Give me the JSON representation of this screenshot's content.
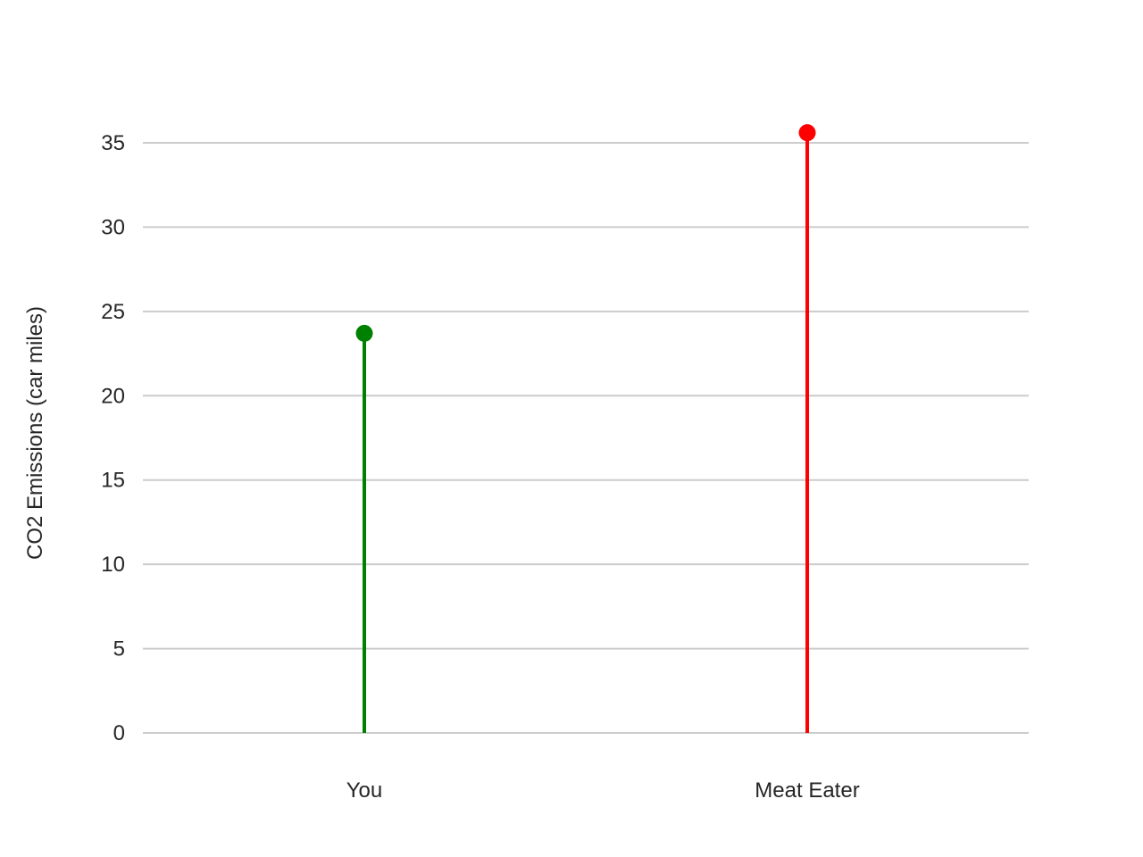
{
  "chart_data": {
    "type": "lollipop",
    "categories": [
      "You",
      "Meat Eater"
    ],
    "values": [
      23.7,
      35.6
    ],
    "colors": [
      "#008000",
      "#ff0000"
    ],
    "xlabel": "",
    "ylabel": "CO2 Emissions (car miles)",
    "ylim": [
      0,
      37
    ],
    "yticks": [
      0,
      5,
      10,
      15,
      20,
      25,
      30,
      35
    ],
    "grid": true
  }
}
